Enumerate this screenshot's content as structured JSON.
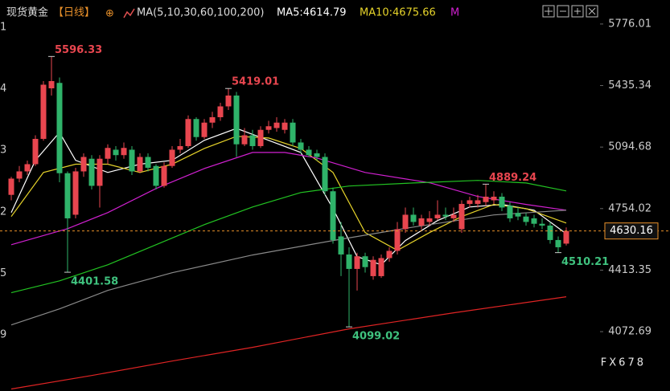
{
  "chart_data": {
    "type": "candlestick",
    "header": {
      "name": "现货黄金",
      "period": "【日线】",
      "ma_icon": "⊕",
      "ma_list": "MA(5,10,30,60,100,200)",
      "ma5": "MA5:4614.79",
      "ma10": "MA10:4675.66",
      "ma_more": "M"
    },
    "ylim": [
      3744,
      5909
    ],
    "yticks": [
      5776.01,
      5435.34,
      5094.68,
      4754.02,
      4413.35,
      4072.69
    ],
    "left_axis_labels": [
      "1",
      "4",
      "3",
      "2",
      "5",
      "9"
    ],
    "up_color": "#e8464f",
    "down_color": "#2fb36a",
    "open": [
      4830,
      4920,
      4960,
      5000,
      5140,
      5420,
      5450,
      4950,
      4720,
      4960,
      5030,
      4880,
      5030,
      5080,
      5050,
      5080,
      4960,
      5040,
      4990,
      4880,
      4990,
      5080,
      5100,
      5250,
      5150,
      5230,
      5260,
      5320,
      5380,
      5110,
      5160,
      5100,
      5190,
      5200,
      5190,
      5230,
      5120,
      5080,
      5060,
      5040,
      4850,
      4600,
      4500,
      4420,
      4490,
      4380,
      4380,
      4480,
      4520,
      4640,
      4720,
      4660,
      4680,
      4700,
      4720,
      4700,
      4640,
      4780,
      4780,
      4790,
      4800,
      4820,
      4770,
      4730,
      4710,
      4700,
      4670,
      4660,
      4580,
      4560
    ],
    "high": [
      4930,
      4990,
      5020,
      5160,
      5460,
      5596.33,
      5480,
      4960,
      4980,
      5060,
      5050,
      5050,
      5110,
      5100,
      5120,
      5100,
      5060,
      5060,
      5000,
      5010,
      5100,
      5140,
      5270,
      5260,
      5250,
      5290,
      5340,
      5419.01,
      5400,
      5200,
      5190,
      5210,
      5240,
      5260,
      5250,
      5250,
      5140,
      5100,
      5080,
      5060,
      4870,
      4680,
      4540,
      4510,
      4510,
      4490,
      4500,
      4540,
      4680,
      4760,
      4760,
      4720,
      4740,
      4800,
      4760,
      4760,
      4800,
      4820,
      4830,
      4889.24,
      4850,
      4840,
      4790,
      4760,
      4730,
      4720,
      4700,
      4680,
      4600,
      4650
    ],
    "low": [
      4800,
      4900,
      4940,
      4990,
      5130,
      5380,
      4900,
      4401.58,
      4700,
      4930,
      4860,
      4760,
      5000,
      5020,
      5030,
      4940,
      4950,
      4960,
      4860,
      4870,
      4980,
      5060,
      5090,
      5130,
      5140,
      5200,
      5240,
      5300,
      5040,
      5100,
      5080,
      5090,
      5170,
      5180,
      5170,
      5100,
      5060,
      5040,
      5020,
      4830,
      4560,
      4380,
      4099.02,
      4300,
      4400,
      4360,
      4370,
      4460,
      4500,
      4620,
      4660,
      4640,
      4660,
      4690,
      4690,
      4680,
      4620,
      4760,
      4760,
      4770,
      4780,
      4740,
      4680,
      4690,
      4660,
      4650,
      4640,
      4560,
      4510.21,
      4550
    ],
    "close": [
      4920,
      4960,
      5000,
      5140,
      5440,
      5460,
      4950,
      4700,
      4960,
      5040,
      4880,
      5030,
      5090,
      5050,
      5090,
      4960,
      5040,
      4980,
      4880,
      4990,
      5080,
      5100,
      5250,
      5150,
      5230,
      5260,
      5320,
      5380,
      5110,
      5160,
      5100,
      5190,
      5210,
      5230,
      5230,
      5120,
      5080,
      5050,
      5040,
      4850,
      4580,
      4500,
      4420,
      4490,
      4430,
      4470,
      4480,
      4520,
      4640,
      4720,
      4680,
      4700,
      4700,
      4720,
      4710,
      4720,
      4780,
      4800,
      4800,
      4820,
      4820,
      4760,
      4700,
      4710,
      4680,
      4670,
      4660,
      4580,
      4540,
      4630.16
    ],
    "series": [
      {
        "color": "#ffffff",
        "x": [
          0,
          3,
          6,
          8,
          12,
          16,
          20,
          24,
          28,
          32,
          36,
          40,
          43,
          46,
          49,
          53,
          57,
          61,
          65,
          69
        ],
        "values": [
          4732,
          5021,
          5176,
          5021,
          4954,
          5000,
          5021,
          5132,
          5198,
          5132,
          5065,
          4754,
          4488,
          4443,
          4577,
          4688,
          4763,
          4777,
          4745,
          4615
        ]
      },
      {
        "color": "#e6d32a",
        "x": [
          0,
          4,
          8,
          12,
          16,
          20,
          24,
          28,
          32,
          36,
          40,
          44,
          48,
          52,
          56,
          60,
          64,
          69
        ],
        "values": [
          4710,
          4954,
          5000,
          5000,
          4954,
          5000,
          5087,
          5154,
          5145,
          5087,
          4954,
          4621,
          4523,
          4621,
          4710,
          4777,
          4754,
          4674
        ]
      },
      {
        "color": "#d020d0",
        "x": [
          0,
          7,
          12,
          18,
          24,
          30,
          34,
          38,
          44,
          52,
          58,
          64,
          69
        ],
        "values": [
          4554,
          4643,
          4732,
          4865,
          4976,
          5065,
          5065,
          5034,
          4954,
          4897,
          4821,
          4777,
          4745
        ]
      },
      {
        "color": "#22c322",
        "x": [
          0,
          6,
          12,
          18,
          24,
          30,
          36,
          42,
          50,
          58,
          64,
          69
        ],
        "values": [
          4288,
          4354,
          4443,
          4554,
          4665,
          4763,
          4843,
          4879,
          4896,
          4910,
          4896,
          4852
        ]
      },
      {
        "color": "#8a8a8a",
        "x": [
          0,
          6,
          12,
          20,
          30,
          40,
          50,
          60,
          69
        ],
        "values": [
          4110,
          4199,
          4301,
          4399,
          4497,
          4577,
          4652,
          4719,
          4745
        ]
      },
      {
        "color": "#e02424",
        "x": [
          0,
          10,
          20,
          30,
          42,
          55,
          69
        ],
        "values": [
          3755,
          3830,
          3910,
          3986,
          4088,
          4177,
          4266
        ]
      }
    ],
    "annotations": [
      5596.33,
      5419.01,
      4889.24,
      4401.58,
      4099.02,
      4510.21
    ],
    "last_price": 4630.16,
    "watermark": "FX678"
  }
}
